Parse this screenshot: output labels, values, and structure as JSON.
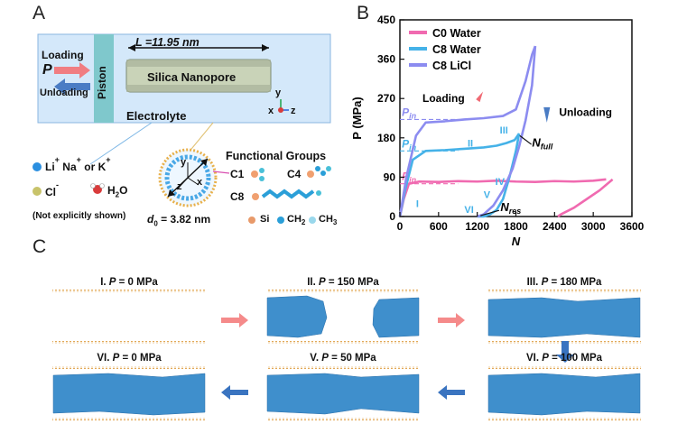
{
  "panels": {
    "a": "A",
    "b": "B",
    "c": "C"
  },
  "panel_a": {
    "length_label": "L =11.95 nm",
    "loading": "Loading",
    "pressure_symbol": "P",
    "unloading": "Unloading",
    "piston": "Piston",
    "nanopore": "Silica Nanopore",
    "electrolyte": "Electrolyte",
    "axes": {
      "y": "y",
      "x": "x",
      "z": "z"
    },
    "ions": {
      "li": "Li",
      "na": "Na",
      "or": "or",
      "k": "K",
      "plus": "+",
      "cl": "Cl",
      "minus": "-",
      "h2o": "H",
      "h2o_sub": "2",
      "h2o_o": "O"
    },
    "not_shown": "(Not explicitly shown)",
    "diameter": "d0 = 3.82 nm",
    "diameter_symbol": "d",
    "diameter_sub": "0",
    "diameter_value": " = 3.82 nm",
    "functional_groups": "Functional Groups",
    "c1": "C1",
    "c4": "C4",
    "c8": "C8",
    "atoms": {
      "si": "Si",
      "ch2": "CH",
      "ch2_sub": "2",
      "ch3": "CH",
      "ch3_sub": "3"
    },
    "cross_axes": {
      "y": "y",
      "x": "x",
      "z": "z"
    }
  },
  "chart_data": {
    "type": "line",
    "xlabel": "N",
    "ylabel": "P (MPa)",
    "xlim": [
      0,
      3600
    ],
    "ylim": [
      0,
      450
    ],
    "xticks": [
      0,
      600,
      1200,
      1800,
      2400,
      3000,
      3600
    ],
    "yticks": [
      0,
      90,
      180,
      270,
      360,
      450
    ],
    "legend_position": "top-left",
    "series": [
      {
        "name": "C0 Water",
        "color": "#f06ab0",
        "loading_x": [
          0,
          60,
          140,
          300,
          600,
          900,
          1200,
          1500,
          1800,
          2100,
          2400,
          2700,
          3000,
          3200
        ],
        "loading_y": [
          0,
          40,
          75,
          80,
          79,
          81,
          80,
          82,
          80,
          79,
          81,
          80,
          82,
          85
        ],
        "unloading_x": [
          3300,
          3100,
          2900,
          2700,
          2500,
          2450
        ],
        "unloading_y": [
          85,
          60,
          40,
          20,
          5,
          0
        ]
      },
      {
        "name": "C8 Water",
        "color": "#45b2e8",
        "loading_x": [
          0,
          80,
          200,
          400,
          700,
          1000,
          1300,
          1500,
          1650,
          1780,
          1850
        ],
        "loading_y": [
          0,
          60,
          130,
          150,
          152,
          155,
          158,
          162,
          168,
          175,
          190
        ],
        "unloading_x": [
          1850,
          1800,
          1700,
          1600,
          1500,
          1400,
          1300,
          1200
        ],
        "unloading_y": [
          190,
          150,
          90,
          40,
          15,
          5,
          0,
          0
        ]
      },
      {
        "name": "C8 LiCl",
        "color": "#8c8cf0",
        "loading_x": [
          0,
          100,
          250,
          400,
          700,
          1000,
          1300,
          1600,
          1800,
          1950,
          2050,
          2100
        ],
        "loading_y": [
          0,
          90,
          185,
          215,
          218,
          222,
          225,
          230,
          245,
          310,
          370,
          390
        ],
        "unloading_x": [
          2100,
          2050,
          1950,
          1850,
          1750,
          1600,
          1450,
          1300,
          1200
        ],
        "unloading_y": [
          390,
          300,
          220,
          160,
          110,
          60,
          25,
          5,
          0
        ]
      }
    ],
    "reference_lines": [
      {
        "label": "P_in",
        "y": 222,
        "color": "#8c8cf0"
      },
      {
        "label": "P_in",
        "y": 150,
        "color": "#45b2e8"
      },
      {
        "label": "P_in",
        "y": 75,
        "color": "#f06ab0"
      }
    ],
    "annotations": {
      "loading": "Loading",
      "unloading": "Unloading",
      "n_full": "N",
      "n_full_sub": "full",
      "n_res": "N",
      "n_res_sub": "res",
      "p_in_main": "P",
      "p_in_sub": "in",
      "stages": [
        "I",
        "II",
        "III",
        "IV",
        "V",
        "VI"
      ]
    }
  },
  "panel_c": {
    "snapshots": [
      {
        "title_prefix": "I. ",
        "pressure": "P",
        "title_suffix": " = 0 MPa"
      },
      {
        "title_prefix": "II. ",
        "pressure": "P",
        "title_suffix": " = 150 MPa"
      },
      {
        "title_prefix": "III. ",
        "pressure": "P",
        "title_suffix": " = 180 MPa"
      },
      {
        "title_prefix": "VI. ",
        "pressure": "P",
        "title_suffix": " = 0 MPa"
      },
      {
        "title_prefix": "V. ",
        "pressure": "P",
        "title_suffix": " = 50 MPa"
      },
      {
        "title_prefix": "VI. ",
        "pressure": "P",
        "title_suffix": " = 100 MPa"
      }
    ]
  }
}
